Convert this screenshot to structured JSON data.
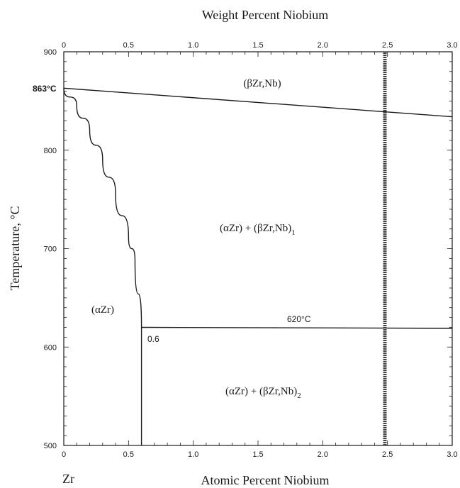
{
  "chart_data": {
    "type": "line",
    "title": "",
    "xlabel": "Atomic Percent Niobium",
    "x2label": "Weight Percent Niobium",
    "ylabel": "Temperature, °C",
    "xlim": [
      0,
      3.0
    ],
    "x2lim": [
      0,
      3.0
    ],
    "ylim": [
      500,
      900
    ],
    "x_ticks": [
      "0",
      "0.5",
      "1.0",
      "1.5",
      "2.0",
      "2.5",
      "3.0"
    ],
    "x2_ticks": [
      "0",
      "0.5",
      "1.0",
      "1.5",
      "2.0",
      "2.5",
      "3.0"
    ],
    "y_ticks": [
      "500",
      "600",
      "700",
      "800",
      "900"
    ],
    "x_tick_values": [
      0,
      0.5,
      1.0,
      1.5,
      2.0,
      2.5,
      3.0
    ],
    "y_tick_values": [
      500,
      600,
      700,
      800,
      900
    ],
    "grid": false,
    "series": [
      {
        "x": [
          0,
          3.0
        ],
        "y": [
          863,
          834
        ]
      },
      {
        "x": [
          0,
          0.1,
          0.2,
          0.3,
          0.4,
          0.5,
          0.55,
          0.6
        ],
        "y": [
          863,
          845,
          820,
          790,
          755,
          712,
          688,
          620
        ]
      },
      {
        "x": [
          0.6,
          0.6
        ],
        "y": [
          500,
          620
        ]
      },
      {
        "x": [
          0.6,
          3.0
        ],
        "y": [
          620,
          619
        ]
      },
      {
        "x": [
          2.48,
          2.48
        ],
        "y": [
          500,
          900
        ]
      }
    ],
    "annotations": {
      "beta_region": "(βZr,Nb)",
      "alpha_beta1_main": "(αZr) + (βZr,Nb)",
      "alpha_beta1_sub": "1",
      "alpha_region": "(αZr)",
      "alpha_beta2_main": "(αZr) + (βZr,Nb)",
      "alpha_beta2_sub": "2",
      "eutectoid_temp": "620°C",
      "peak_temp": "863°C",
      "solubility_limit": "0.6",
      "element_symbol": "Zr"
    },
    "colors": {
      "line": "#1a1a1a",
      "marker_line": "#444444"
    }
  }
}
